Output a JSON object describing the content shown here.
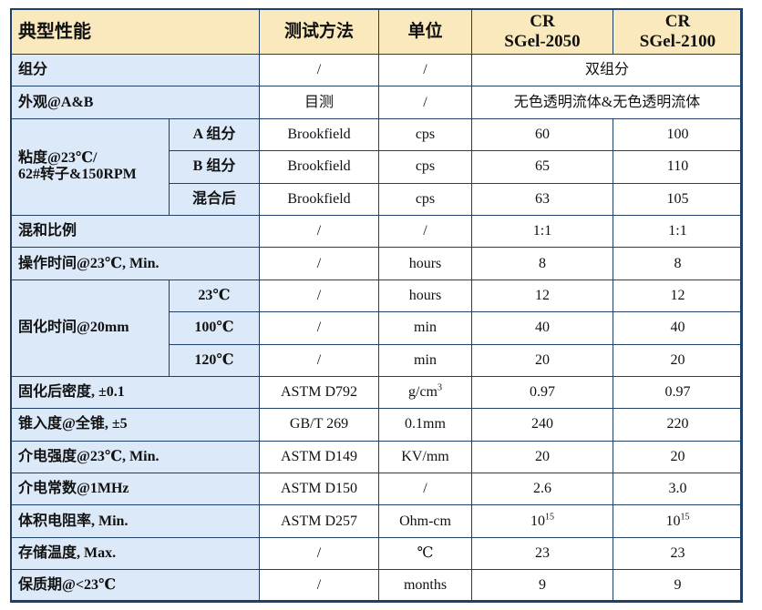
{
  "header": {
    "property": "典型性能",
    "method": "测试方法",
    "unit": "单位",
    "product_1": [
      "CR",
      "SGel-2050"
    ],
    "product_2": [
      "CR",
      "SGel-2100"
    ]
  },
  "rows": {
    "components": {
      "label": "组分",
      "method": "/",
      "unit": "/",
      "value": "双组分"
    },
    "appearance": {
      "label": "外观@A&B",
      "method": "目测",
      "unit": "/",
      "value": "无色透明流体&无色透明流体"
    },
    "viscosity": {
      "label_line1": "粘度@23℃/",
      "label_line2": "62#转子&150RPM",
      "sub": [
        {
          "label": "A 组分",
          "method": "Brookfield",
          "unit": "cps",
          "v1": "60",
          "v2": "100"
        },
        {
          "label": "B 组分",
          "method": "Brookfield",
          "unit": "cps",
          "v1": "65",
          "v2": "110"
        },
        {
          "label": "混合后",
          "method": "Brookfield",
          "unit": "cps",
          "v1": "63",
          "v2": "105"
        }
      ]
    },
    "mix_ratio": {
      "label": "混和比例",
      "method": "/",
      "unit": "/",
      "v1": "1:1",
      "v2": "1:1"
    },
    "work_time": {
      "label": "操作时间@23℃, Min.",
      "method": "/",
      "unit": "hours",
      "v1": "8",
      "v2": "8"
    },
    "cure_time": {
      "label": "固化时间@20mm",
      "sub": [
        {
          "label": "23℃",
          "method": "/",
          "unit": "hours",
          "v1": "12",
          "v2": "12"
        },
        {
          "label": "100℃",
          "method": "/",
          "unit": "min",
          "v1": "40",
          "v2": "40"
        },
        {
          "label": "120℃",
          "method": "/",
          "unit": "min",
          "v1": "20",
          "v2": "20"
        }
      ]
    },
    "density": {
      "label": "固化后密度, ±0.1",
      "method": "ASTM D792",
      "unit_base": "g/cm",
      "unit_sup": "3",
      "v1": "0.97",
      "v2": "0.97"
    },
    "penetration": {
      "label": "锥入度@全锥, ±5",
      "method": "GB/T 269",
      "unit": "0.1mm",
      "v1": "240",
      "v2": "220"
    },
    "dielectric_strength": {
      "label": "介电强度@23℃, Min.",
      "method": "ASTM D149",
      "unit": "KV/mm",
      "v1": "20",
      "v2": "20"
    },
    "dielectric_constant": {
      "label": "介电常数@1MHz",
      "method": "ASTM D150",
      "unit": "/",
      "v1": "2.6",
      "v2": "3.0"
    },
    "volume_resistivity": {
      "label": "体积电阻率, Min.",
      "method": "ASTM D257",
      "unit": "Ohm-cm",
      "v1_base": "10",
      "v1_sup": "15",
      "v2_base": "10",
      "v2_sup": "15"
    },
    "storage_temp": {
      "label": "存储温度, Max.",
      "method": "/",
      "unit": "℃",
      "v1": "23",
      "v2": "23"
    },
    "shelf_life": {
      "label": "保质期@<23℃",
      "method": "/",
      "unit": "months",
      "v1": "9",
      "v2": "9"
    }
  }
}
